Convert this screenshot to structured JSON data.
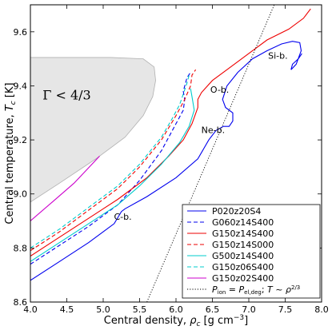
{
  "chart_data": {
    "type": "line",
    "xlabel": "Central density, ρc [g cm⁻³]",
    "xlabel_parts": {
      "main": "Central density, ",
      "sym": "ρ",
      "sub": "c",
      "unit": " [g cm",
      "exp": "−3",
      "close": "]"
    },
    "ylabel": "Central temperature, Tc [K]",
    "ylabel_parts": {
      "main": "Central temperature, ",
      "sym": "T",
      "sub": "c",
      "unit": " [K]"
    },
    "xlim": [
      4.0,
      8.0
    ],
    "ylim": [
      8.6,
      9.7
    ],
    "xticks": [
      4.0,
      4.5,
      5.0,
      5.5,
      6.0,
      6.5,
      7.0,
      7.5,
      8.0
    ],
    "xtick_labels": [
      "4.0",
      "4.5",
      "5.0",
      "5.5",
      "6.0",
      "6.5",
      "7.0",
      "7.5",
      "8.0"
    ],
    "yticks": [
      8.6,
      8.8,
      9.0,
      9.2,
      9.4,
      9.6
    ],
    "ytick_labels": [
      "8.6",
      "8.8",
      "9.0",
      "9.2",
      "9.4",
      "9.6"
    ],
    "grid": false,
    "legend_position": "bottom-right",
    "region": {
      "label": "Γ < 4/3",
      "color": "#e6e6e6",
      "points": [
        [
          4.0,
          8.97
        ],
        [
          4.4,
          9.04
        ],
        [
          4.9,
          9.13
        ],
        [
          5.3,
          9.21
        ],
        [
          5.55,
          9.29
        ],
        [
          5.68,
          9.36
        ],
        [
          5.72,
          9.42
        ],
        [
          5.7,
          9.47
        ],
        [
          5.55,
          9.5
        ],
        [
          5.1,
          9.505
        ],
        [
          4.0,
          9.505
        ]
      ]
    },
    "annotations": [
      {
        "text": "C-b.",
        "x": 5.27,
        "y": 8.905
      },
      {
        "text": "Ne-b.",
        "x": 6.51,
        "y": 9.225
      },
      {
        "text": "O-b.",
        "x": 6.6,
        "y": 9.375
      },
      {
        "text": "Si-b.",
        "x": 7.4,
        "y": 9.5
      }
    ],
    "series": [
      {
        "name": "P020z20S4",
        "color": "#0000ee",
        "dash": "solid",
        "points": [
          [
            4.0,
            8.68
          ],
          [
            4.4,
            8.75
          ],
          [
            4.8,
            8.82
          ],
          [
            5.15,
            8.89
          ],
          [
            5.25,
            8.935
          ],
          [
            5.3,
            8.945
          ],
          [
            5.6,
            8.99
          ],
          [
            6.0,
            9.06
          ],
          [
            6.3,
            9.13
          ],
          [
            6.45,
            9.2
          ],
          [
            6.55,
            9.235
          ],
          [
            6.65,
            9.25
          ],
          [
            6.73,
            9.25
          ],
          [
            6.78,
            9.27
          ],
          [
            6.78,
            9.3
          ],
          [
            6.68,
            9.32
          ],
          [
            6.64,
            9.35
          ],
          [
            6.7,
            9.4
          ],
          [
            6.85,
            9.45
          ],
          [
            7.05,
            9.5
          ],
          [
            7.25,
            9.53
          ],
          [
            7.45,
            9.555
          ],
          [
            7.6,
            9.565
          ],
          [
            7.7,
            9.56
          ],
          [
            7.72,
            9.53
          ],
          [
            7.65,
            9.48
          ],
          [
            7.58,
            9.46
          ],
          [
            7.6,
            9.48
          ],
          [
            7.68,
            9.5
          ],
          [
            7.73,
            9.52
          ]
        ]
      },
      {
        "name": "G060z14S400",
        "color": "#0000ee",
        "dash": "dashed",
        "points": [
          [
            4.0,
            8.74
          ],
          [
            4.4,
            8.81
          ],
          [
            4.8,
            8.88
          ],
          [
            5.2,
            8.96
          ],
          [
            5.5,
            9.05
          ],
          [
            5.8,
            9.16
          ],
          [
            6.0,
            9.26
          ],
          [
            6.1,
            9.31
          ],
          [
            6.12,
            9.35
          ],
          [
            6.1,
            9.38
          ],
          [
            6.15,
            9.43
          ],
          [
            6.2,
            9.45
          ]
        ]
      },
      {
        "name": "G150z14S400",
        "color": "#ee0000",
        "dash": "solid",
        "points": [
          [
            4.0,
            8.77
          ],
          [
            4.4,
            8.84
          ],
          [
            4.8,
            8.91
          ],
          [
            5.2,
            8.98
          ],
          [
            5.6,
            9.06
          ],
          [
            5.9,
            9.14
          ],
          [
            6.1,
            9.2
          ],
          [
            6.22,
            9.26
          ],
          [
            6.3,
            9.32
          ],
          [
            6.3,
            9.35
          ],
          [
            6.35,
            9.375
          ],
          [
            6.5,
            9.42
          ],
          [
            6.75,
            9.47
          ],
          [
            7.0,
            9.52
          ],
          [
            7.25,
            9.57
          ],
          [
            7.55,
            9.61
          ],
          [
            7.75,
            9.65
          ],
          [
            7.85,
            9.685
          ]
        ]
      },
      {
        "name": "G150z14S000",
        "color": "#ee0000",
        "dash": "dashed",
        "points": [
          [
            4.0,
            8.79
          ],
          [
            4.4,
            8.86
          ],
          [
            4.8,
            8.94
          ],
          [
            5.2,
            9.02
          ],
          [
            5.5,
            9.1
          ],
          [
            5.8,
            9.2
          ],
          [
            6.0,
            9.29
          ],
          [
            6.12,
            9.35
          ],
          [
            6.2,
            9.4
          ],
          [
            6.22,
            9.44
          ],
          [
            6.27,
            9.46
          ]
        ]
      },
      {
        "name": "G500z14S400",
        "color": "#00cccc",
        "dash": "solid",
        "points": [
          [
            4.0,
            8.75
          ],
          [
            4.4,
            8.82
          ],
          [
            4.8,
            8.89
          ],
          [
            5.2,
            8.96
          ],
          [
            5.5,
            9.03
          ],
          [
            5.8,
            9.11
          ],
          [
            6.05,
            9.19
          ],
          [
            6.18,
            9.25
          ],
          [
            6.25,
            9.31
          ],
          [
            6.22,
            9.36
          ],
          [
            6.2,
            9.39
          ]
        ]
      },
      {
        "name": "G150z06S400",
        "color": "#00cccc",
        "dash": "dashed",
        "points": [
          [
            4.0,
            8.8
          ],
          [
            4.4,
            8.87
          ],
          [
            4.8,
            8.95
          ],
          [
            5.2,
            9.03
          ],
          [
            5.5,
            9.11
          ],
          [
            5.8,
            9.21
          ],
          [
            5.95,
            9.28
          ],
          [
            6.05,
            9.33
          ],
          [
            6.1,
            9.37
          ],
          [
            6.15,
            9.41
          ],
          [
            6.18,
            9.44
          ]
        ]
      },
      {
        "name": "G150z02S400",
        "color": "#cc00cc",
        "dash": "solid",
        "points": [
          [
            4.0,
            8.9
          ],
          [
            4.3,
            8.97
          ],
          [
            4.6,
            9.04
          ],
          [
            4.95,
            9.14
          ]
        ]
      },
      {
        "name": "Pion = Pel,deg; T ~ ρ^(2/3)",
        "color": "#000000",
        "dash": "dotted",
        "points": [
          [
            5.6,
            8.6
          ],
          [
            7.35,
            9.7
          ]
        ]
      }
    ],
    "legend_entries": [
      {
        "label": "P020z20S4"
      },
      {
        "label": "G060z14S400"
      },
      {
        "label": "G150z14S400"
      },
      {
        "label": "G150z14S000"
      },
      {
        "label": "G500z14S400"
      },
      {
        "label": "G150z06S400"
      },
      {
        "label": "G150z02S400"
      },
      {
        "label": "Pion = Pel,deg; T ~ ρ2/3"
      }
    ],
    "legend_math": {
      "p": "P",
      "ion": "ion",
      "eq": " = ",
      "el": "el,deg",
      "sep": "; ",
      "t": "T",
      "sim": " ~ ",
      "rho": "ρ",
      "exp": "2/3"
    }
  }
}
